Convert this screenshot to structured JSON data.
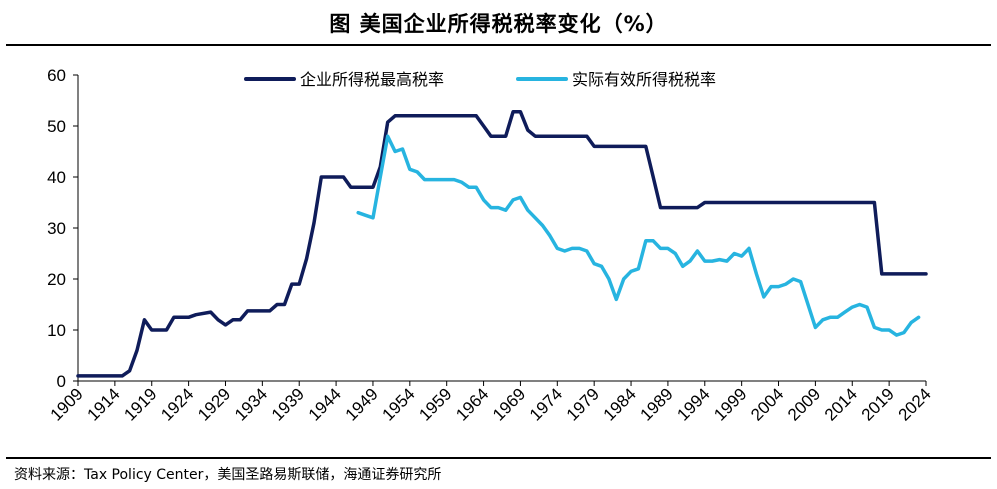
{
  "title": "图 美国企业所得税税率变化（%）",
  "source": "资料来源：Tax Policy Center，美国圣路易斯联储，海通证券研究所",
  "chart_data": {
    "type": "line",
    "title": "图 美国企业所得税税率变化（%）",
    "xlabel": "",
    "ylabel": "",
    "xlim": [
      1909,
      2024
    ],
    "ylim": [
      0,
      60
    ],
    "yticks": [
      0,
      10,
      20,
      30,
      40,
      50,
      60
    ],
    "xticks": [
      1909,
      1914,
      1919,
      1924,
      1929,
      1934,
      1939,
      1944,
      1949,
      1954,
      1959,
      1964,
      1969,
      1974,
      1979,
      1984,
      1989,
      1994,
      1999,
      2004,
      2009,
      2014,
      2019,
      2024
    ],
    "grid": false,
    "legend": "top",
    "series": [
      {
        "name": "企业所得税最高税率",
        "color": "#0f1c5a",
        "x": [
          1909,
          1915,
          1916,
          1917,
          1918,
          1919,
          1920,
          1921,
          1922,
          1923,
          1924,
          1925,
          1927,
          1928,
          1929,
          1930,
          1931,
          1932,
          1933,
          1934,
          1935,
          1936,
          1937,
          1938,
          1939,
          1940,
          1941,
          1942,
          1943,
          1944,
          1945,
          1946,
          1947,
          1948,
          1949,
          1950,
          1951,
          1952,
          1953,
          1954,
          1955,
          1956,
          1963,
          1964,
          1965,
          1966,
          1967,
          1968,
          1969,
          1970,
          1971,
          1972,
          1978,
          1979,
          1980,
          1986,
          1987,
          1988,
          1989,
          1992,
          1993,
          1994,
          2017,
          2018,
          2024
        ],
        "y": [
          1,
          1,
          2,
          6,
          12,
          10,
          10,
          10,
          12.5,
          12.5,
          12.5,
          13,
          13.5,
          12,
          11,
          12,
          12,
          13.75,
          13.75,
          13.75,
          13.75,
          15,
          15,
          19,
          19,
          24,
          31,
          40,
          40,
          40,
          40,
          38,
          38,
          38,
          38,
          42,
          50.75,
          52,
          52,
          52,
          52,
          52,
          52,
          50,
          48,
          48,
          48,
          52.8,
          52.8,
          49.2,
          48,
          48,
          48,
          46,
          46,
          46,
          40,
          34,
          34,
          34,
          34,
          35,
          35,
          21,
          21
        ]
      },
      {
        "name": "实际有效所得税税率",
        "color": "#27b4e0",
        "x": [
          1947,
          1948,
          1949,
          1950,
          1951,
          1952,
          1953,
          1954,
          1955,
          1956,
          1957,
          1958,
          1959,
          1960,
          1961,
          1962,
          1963,
          1964,
          1965,
          1966,
          1967,
          1968,
          1969,
          1970,
          1971,
          1972,
          1973,
          1974,
          1975,
          1976,
          1977,
          1978,
          1979,
          1980,
          1981,
          1982,
          1983,
          1984,
          1985,
          1986,
          1987,
          1988,
          1989,
          1990,
          1991,
          1992,
          1993,
          1994,
          1995,
          1996,
          1997,
          1998,
          1999,
          2000,
          2001,
          2002,
          2003,
          2004,
          2005,
          2006,
          2007,
          2008,
          2009,
          2010,
          2011,
          2012,
          2013,
          2014,
          2015,
          2016,
          2017,
          2018,
          2019,
          2020,
          2021,
          2022,
          2023
        ],
        "y": [
          33,
          32.5,
          32,
          40,
          48,
          45,
          45.5,
          41.5,
          41,
          39.5,
          39.5,
          39.5,
          39.5,
          39.5,
          39,
          38,
          38,
          35.5,
          34,
          34,
          33.5,
          35.5,
          36,
          33.5,
          32,
          30.5,
          28.5,
          26,
          25.5,
          26,
          26,
          25.5,
          23,
          22.5,
          20,
          16,
          20,
          21.5,
          22,
          27.5,
          27.5,
          26,
          26,
          25,
          22.5,
          23.5,
          25.5,
          23.5,
          23.5,
          23.8,
          23.5,
          25,
          24.5,
          26,
          21,
          16.5,
          18.5,
          18.5,
          19,
          20,
          19.5,
          15,
          10.5,
          12,
          12.5,
          12.5,
          13.5,
          14.5,
          15,
          14.5,
          10.5,
          10,
          10,
          9,
          9.5,
          11.5,
          12.5
        ]
      }
    ]
  }
}
